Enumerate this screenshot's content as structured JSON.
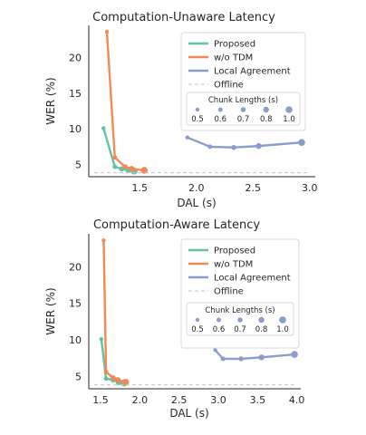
{
  "chart_data": [
    {
      "type": "line",
      "title": "Computation-Unaware Latency",
      "xlabel": "DAL (s)",
      "ylabel": "WER (%)",
      "xlim": [
        1.05,
        3.05
      ],
      "ylim": [
        3.3,
        24.5
      ],
      "xticks": [
        "2.0",
        "2.5",
        "3.0"
      ],
      "xtick_values": [
        2.0,
        2.5,
        3.0
      ],
      "xticks_minor": [
        "1.5"
      ],
      "xtick_minor_values": [
        1.5
      ],
      "yticks": [
        "5",
        "10",
        "15",
        "20"
      ],
      "ytick_values": [
        5,
        10,
        15,
        20
      ],
      "grid": false,
      "legend_position": "top-right",
      "series": [
        {
          "name": "Proposed",
          "color": "#5fc4a2",
          "marker_sizes": [
            0.5,
            0.6,
            0.7,
            0.8,
            1.0
          ],
          "points": [
            [
              1.18,
              10.1
            ],
            [
              1.28,
              4.7
            ],
            [
              1.34,
              4.4
            ],
            [
              1.4,
              4.2
            ],
            [
              1.45,
              4.1
            ]
          ]
        },
        {
          "name": "w/o TDM",
          "color": "#f08a58",
          "marker_sizes": [
            0.5,
            0.6,
            0.7,
            0.8,
            1.0
          ],
          "points": [
            [
              1.21,
              23.6
            ],
            [
              1.28,
              6.0
            ],
            [
              1.37,
              4.7
            ],
            [
              1.43,
              4.4
            ],
            [
              1.54,
              4.2
            ]
          ]
        },
        {
          "name": "Local Agreement",
          "color": "#8a9dcc",
          "marker_sizes": [
            0.5,
            0.6,
            0.7,
            0.8,
            1.0
          ],
          "points": [
            [
              1.92,
              8.8
            ],
            [
              2.12,
              7.5
            ],
            [
              2.33,
              7.4
            ],
            [
              2.55,
              7.6
            ],
            [
              2.93,
              8.1
            ]
          ]
        },
        {
          "name": "Offline",
          "color": "#c4c4c4",
          "dashed": true,
          "y": 3.85
        }
      ],
      "chunk_legend": {
        "title": "Chunk Lengths (s)",
        "labels": [
          "0.5",
          "0.6",
          "0.7",
          "0.8",
          "1.0"
        ]
      }
    },
    {
      "type": "line",
      "title": "Computation-Aware Latency",
      "xlabel": "DAL (s)",
      "ylabel": "WER (%)",
      "xlim": [
        1.35,
        4.05
      ],
      "ylim": [
        3.3,
        24.5
      ],
      "xticks": [
        "1.5",
        "2.0",
        "2.5",
        "3.0",
        "3.5",
        "4.0"
      ],
      "xtick_values": [
        1.5,
        2.0,
        2.5,
        3.0,
        3.5,
        4.0
      ],
      "yticks": [
        "5",
        "10",
        "15",
        "20"
      ],
      "ytick_values": [
        5,
        10,
        15,
        20
      ],
      "grid": false,
      "legend_position": "top-right",
      "series": [
        {
          "name": "Proposed",
          "color": "#5fc4a2",
          "marker_sizes": [
            0.5,
            0.6,
            0.7,
            0.8,
            1.0
          ],
          "points": [
            [
              1.51,
              10.1
            ],
            [
              1.57,
              4.7
            ],
            [
              1.66,
              4.5
            ],
            [
              1.73,
              4.2
            ],
            [
              1.8,
              4.1
            ]
          ]
        },
        {
          "name": "w/o TDM",
          "color": "#f08a58",
          "marker_sizes": [
            0.5,
            0.6,
            0.7,
            0.8,
            1.0
          ],
          "points": [
            [
              1.54,
              23.6
            ],
            [
              1.57,
              5.6
            ],
            [
              1.66,
              4.8
            ],
            [
              1.72,
              4.5
            ],
            [
              1.82,
              4.2
            ]
          ]
        },
        {
          "name": "Local Agreement",
          "color": "#8a9dcc",
          "marker_sizes": [
            0.5,
            0.6,
            0.7,
            0.8,
            1.0
          ],
          "points": [
            [
              2.96,
              8.6
            ],
            [
              3.06,
              7.4
            ],
            [
              3.29,
              7.4
            ],
            [
              3.55,
              7.6
            ],
            [
              3.97,
              8.0
            ]
          ]
        },
        {
          "name": "Offline",
          "color": "#c4c4c4",
          "dashed": true,
          "y": 3.85
        }
      ],
      "chunk_legend": {
        "title": "Chunk Lengths (s)",
        "labels": [
          "0.5",
          "0.6",
          "0.7",
          "0.8",
          "1.0"
        ]
      }
    }
  ]
}
